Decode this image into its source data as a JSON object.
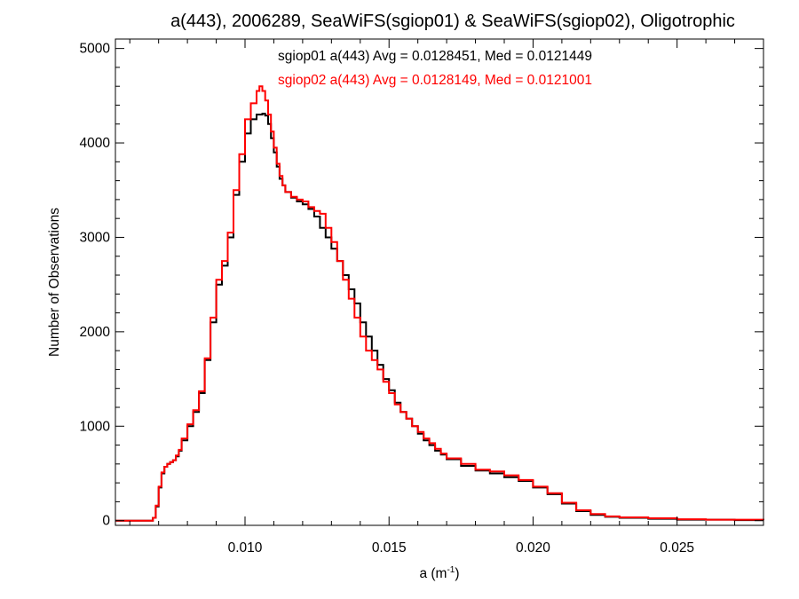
{
  "chart_data": {
    "type": "line",
    "title": "a(443), 2006289, SeaWiFS(sgiop01) & SeaWiFS(sgiop02), Oligotrophic",
    "xlabel_main": "a (m",
    "xlabel_sup": "-1",
    "xlabel_close": ")",
    "ylabel": "Number of Observations",
    "xlim": [
      0.0055,
      0.028
    ],
    "ylim": [
      -50,
      5100
    ],
    "xticks": [
      0.01,
      0.015,
      0.02,
      0.025
    ],
    "xtick_labels": [
      "0.010",
      "0.015",
      "0.020",
      "0.025"
    ],
    "yticks": [
      0,
      1000,
      2000,
      3000,
      4000,
      5000
    ],
    "ytick_labels": [
      "0",
      "1000",
      "2000",
      "3000",
      "4000",
      "5000"
    ],
    "annotations": [
      "sgiop01 a(443) Avg = 0.0128451, Med = 0.0121449",
      "sgiop02 a(443) Avg = 0.0128149, Med = 0.0121001"
    ],
    "series": [
      {
        "color": "#000000",
        "step": true,
        "x": [
          0.0055,
          0.0065,
          0.0068,
          0.0069,
          0.007,
          0.0071,
          0.0072,
          0.0073,
          0.0074,
          0.0075,
          0.0076,
          0.0077,
          0.0078,
          0.008,
          0.0082,
          0.0084,
          0.0086,
          0.0088,
          0.009,
          0.0092,
          0.0094,
          0.0096,
          0.0098,
          0.01,
          0.0102,
          0.0104,
          0.0105,
          0.0106,
          0.0107,
          0.0108,
          0.0109,
          0.011,
          0.0111,
          0.0112,
          0.0113,
          0.0114,
          0.0116,
          0.0118,
          0.012,
          0.0122,
          0.0124,
          0.0126,
          0.0128,
          0.013,
          0.0132,
          0.0134,
          0.0136,
          0.0138,
          0.014,
          0.0142,
          0.0144,
          0.0146,
          0.0148,
          0.015,
          0.0152,
          0.0154,
          0.0156,
          0.0158,
          0.016,
          0.0162,
          0.0164,
          0.0166,
          0.0168,
          0.017,
          0.0175,
          0.018,
          0.0185,
          0.019,
          0.0195,
          0.02,
          0.0205,
          0.021,
          0.0215,
          0.022,
          0.0225,
          0.023,
          0.024,
          0.025,
          0.026,
          0.027,
          0.028
        ],
        "y": [
          0,
          0,
          30,
          150,
          350,
          500,
          570,
          600,
          620,
          640,
          680,
          740,
          850,
          1000,
          1150,
          1350,
          1700,
          2100,
          2500,
          2700,
          3000,
          3450,
          3800,
          4100,
          4250,
          4300,
          4300,
          4310,
          4290,
          4200,
          4050,
          3900,
          3750,
          3620,
          3550,
          3480,
          3420,
          3380,
          3350,
          3300,
          3220,
          3100,
          3000,
          2880,
          2750,
          2600,
          2450,
          2300,
          2100,
          1950,
          1800,
          1650,
          1500,
          1380,
          1250,
          1150,
          1080,
          1000,
          920,
          850,
          800,
          740,
          700,
          650,
          580,
          530,
          500,
          460,
          420,
          350,
          280,
          180,
          100,
          60,
          40,
          30,
          20,
          10,
          10,
          5,
          5
        ]
      },
      {
        "color": "#ff0000",
        "step": true,
        "x": [
          0.0055,
          0.0065,
          0.0068,
          0.0069,
          0.007,
          0.0071,
          0.0072,
          0.0073,
          0.0074,
          0.0075,
          0.0076,
          0.0077,
          0.0078,
          0.008,
          0.0082,
          0.0084,
          0.0086,
          0.0088,
          0.009,
          0.0092,
          0.0094,
          0.0096,
          0.0098,
          0.01,
          0.0102,
          0.0104,
          0.0105,
          0.0106,
          0.0107,
          0.0108,
          0.0109,
          0.011,
          0.0111,
          0.0112,
          0.0113,
          0.0114,
          0.0116,
          0.0118,
          0.012,
          0.0122,
          0.0124,
          0.0126,
          0.0128,
          0.013,
          0.0132,
          0.0134,
          0.0136,
          0.0138,
          0.014,
          0.0142,
          0.0144,
          0.0146,
          0.0148,
          0.015,
          0.0152,
          0.0154,
          0.0156,
          0.0158,
          0.016,
          0.0162,
          0.0164,
          0.0166,
          0.0168,
          0.017,
          0.0175,
          0.018,
          0.0185,
          0.019,
          0.0195,
          0.02,
          0.0205,
          0.021,
          0.0215,
          0.022,
          0.0225,
          0.023,
          0.024,
          0.025,
          0.026,
          0.027,
          0.028
        ],
        "y": [
          0,
          0,
          30,
          160,
          360,
          510,
          570,
          600,
          620,
          640,
          690,
          750,
          870,
          1020,
          1170,
          1370,
          1720,
          2150,
          2550,
          2750,
          3050,
          3500,
          3880,
          4250,
          4420,
          4550,
          4600,
          4550,
          4450,
          4300,
          4120,
          3950,
          3780,
          3650,
          3550,
          3480,
          3430,
          3400,
          3380,
          3320,
          3280,
          3250,
          3100,
          2950,
          2750,
          2550,
          2350,
          2150,
          1950,
          1800,
          1700,
          1600,
          1470,
          1350,
          1230,
          1150,
          1080,
          1000,
          940,
          870,
          820,
          760,
          710,
          660,
          600,
          540,
          520,
          480,
          430,
          360,
          290,
          190,
          110,
          70,
          45,
          35,
          25,
          15,
          10,
          10,
          5
        ]
      }
    ]
  }
}
